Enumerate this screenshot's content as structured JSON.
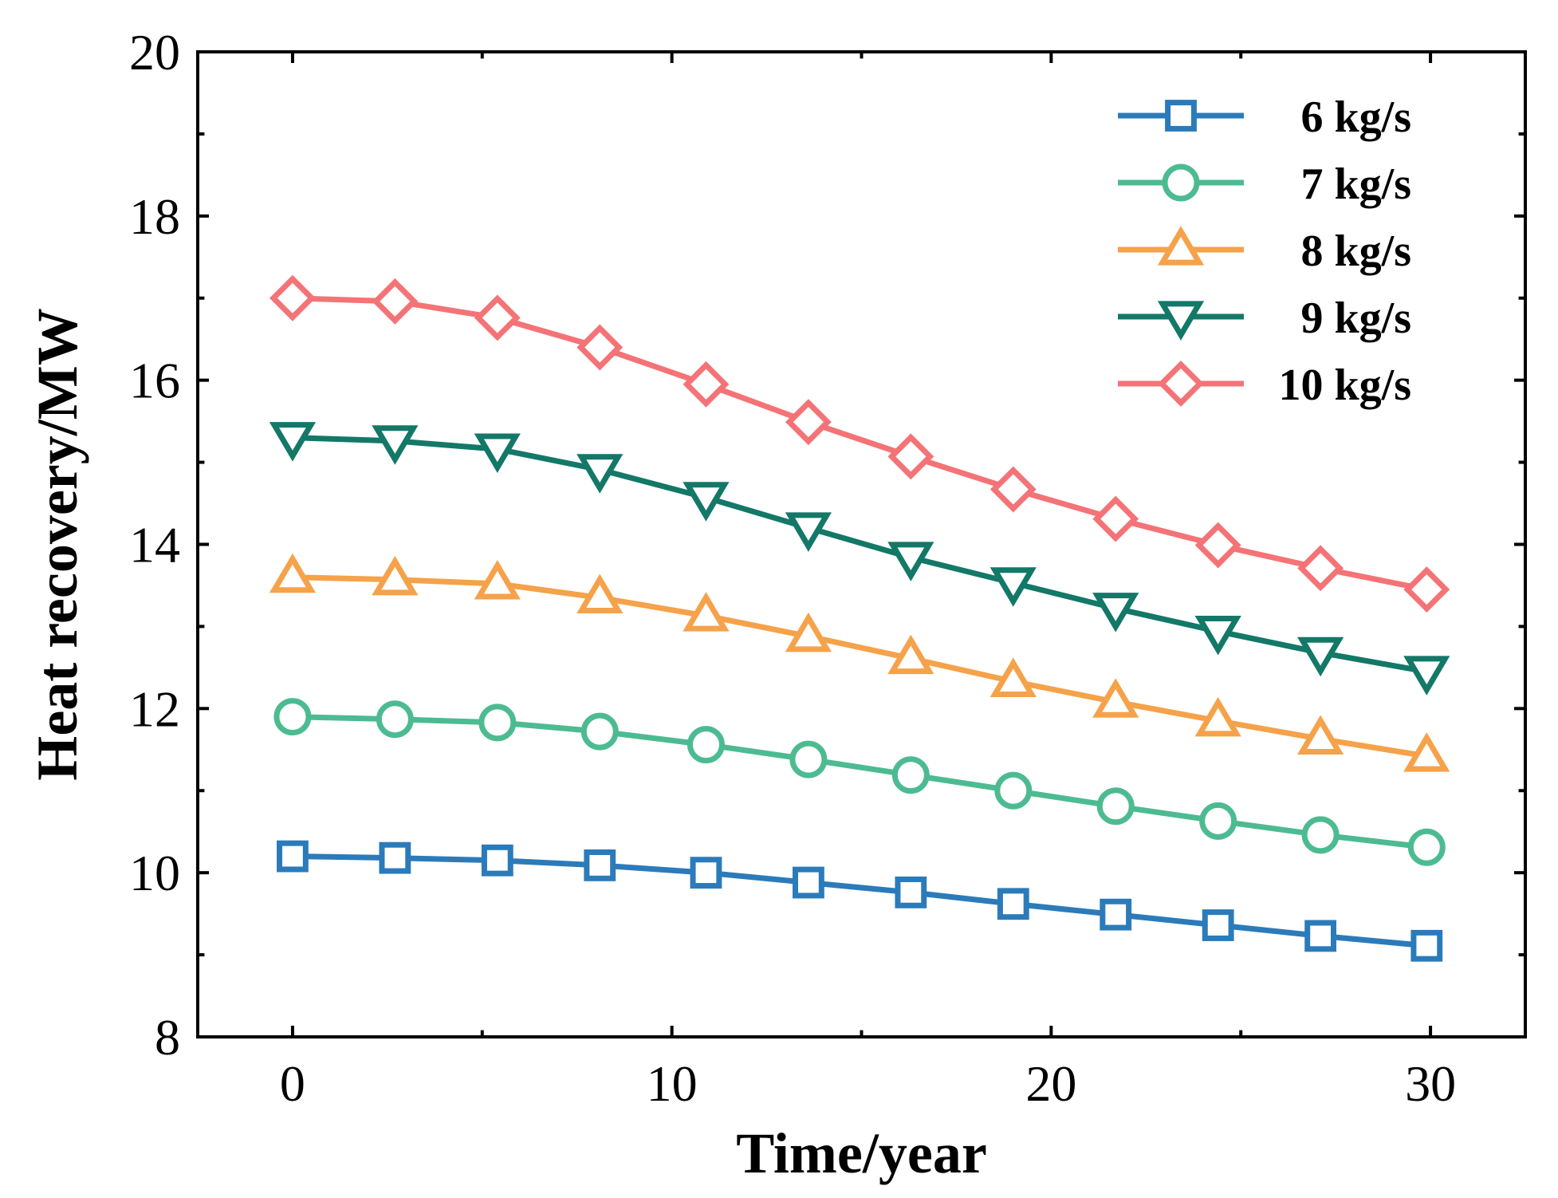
{
  "chart_data": {
    "type": "line",
    "title": "",
    "xlabel": "Time/year",
    "ylabel": "Heat recovery/MW",
    "xlim": [
      -2.5,
      32.5
    ],
    "ylim": [
      8,
      20
    ],
    "xticks": [
      0,
      10,
      20,
      30
    ],
    "yticks": [
      8,
      10,
      12,
      14,
      16,
      18,
      20
    ],
    "xtick_labels": [
      "0",
      "10",
      "20",
      "30"
    ],
    "ytick_labels": [
      "8",
      "10",
      "12",
      "14",
      "16",
      "18",
      "20"
    ],
    "x": [
      0,
      2.7,
      5.4,
      8.1,
      10.9,
      13.6,
      16.3,
      19.0,
      21.7,
      24.4,
      27.1,
      29.9
    ],
    "legend_position": "top-right",
    "grid": false,
    "series": [
      {
        "name": "6 kg/s",
        "color": "#2b7bba",
        "marker": "square",
        "values": [
          10.2,
          10.18,
          10.15,
          10.09,
          10.0,
          9.88,
          9.76,
          9.62,
          9.49,
          9.36,
          9.23,
          9.11
        ]
      },
      {
        "name": "7 kg/s",
        "color": "#4dbb92",
        "marker": "circle",
        "values": [
          11.9,
          11.87,
          11.83,
          11.72,
          11.56,
          11.38,
          11.19,
          11.0,
          10.81,
          10.63,
          10.46,
          10.31
        ]
      },
      {
        "name": "8 kg/s",
        "color": "#f5a24a",
        "marker": "triangle-up",
        "values": [
          13.6,
          13.57,
          13.52,
          13.35,
          13.13,
          12.88,
          12.61,
          12.33,
          12.08,
          11.85,
          11.63,
          11.42
        ]
      },
      {
        "name": "9 kg/s",
        "color": "#137868",
        "marker": "triangle-down",
        "values": [
          15.3,
          15.26,
          15.16,
          14.91,
          14.57,
          14.2,
          13.84,
          13.53,
          13.22,
          12.94,
          12.68,
          12.45
        ]
      },
      {
        "name": "10 kg/s",
        "color": "#f47377",
        "marker": "diamond",
        "values": [
          17.0,
          16.96,
          16.76,
          16.4,
          15.95,
          15.49,
          15.07,
          14.67,
          14.31,
          13.99,
          13.71,
          13.45
        ]
      }
    ]
  }
}
